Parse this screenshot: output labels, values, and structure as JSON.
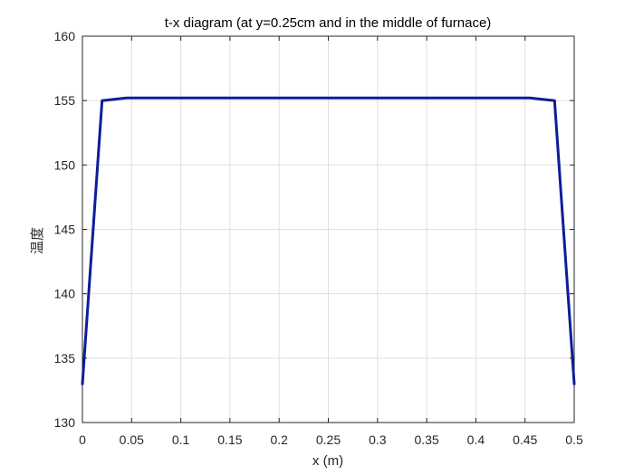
{
  "chart_data": {
    "type": "line",
    "title": "t-x diagram (at y=0.25cm and in the middle of furnace)",
    "xlabel": "x (m)",
    "ylabel": "温度",
    "xlim": [
      0,
      0.5
    ],
    "ylim": [
      130,
      160
    ],
    "xticks": [
      0,
      0.05,
      0.1,
      0.15,
      0.2,
      0.25,
      0.3,
      0.35,
      0.4,
      0.45,
      0.5
    ],
    "xtick_labels": [
      "0",
      "0.05",
      "0.1",
      "0.15",
      "0.2",
      "0.25",
      "0.3",
      "0.35",
      "0.4",
      "0.45",
      "0.5"
    ],
    "yticks": [
      130,
      135,
      140,
      145,
      150,
      155,
      160
    ],
    "ytick_labels": [
      "130",
      "135",
      "140",
      "145",
      "150",
      "155",
      "160"
    ],
    "grid": true,
    "series": [
      {
        "color": "#0c1d9a",
        "x": [
          0,
          0.02,
          0.045,
          0.1,
          0.2,
          0.3,
          0.4,
          0.455,
          0.48,
          0.5
        ],
        "y": [
          133,
          155.0,
          155.2,
          155.2,
          155.2,
          155.2,
          155.2,
          155.2,
          155.0,
          133
        ]
      }
    ]
  }
}
